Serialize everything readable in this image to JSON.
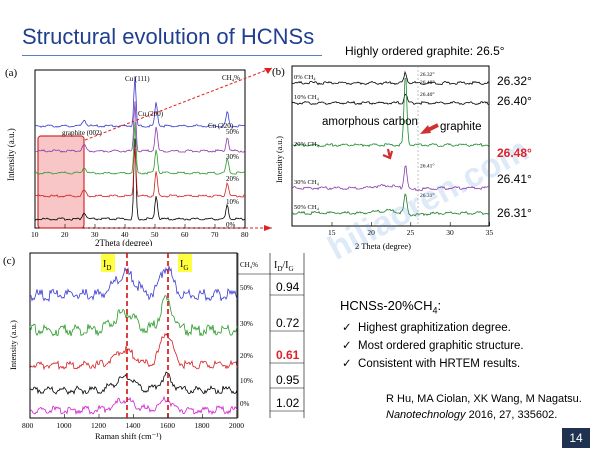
{
  "title": "Structural evolution of HCNSs",
  "top_note": "Highly ordered graphite: 26.5°",
  "angles": [
    {
      "label": "26.32°",
      "highlight": false
    },
    {
      "label": "26.40°",
      "highlight": false
    },
    {
      "label": "26.48°",
      "highlight": true
    },
    {
      "label": "26.41°",
      "highlight": false
    },
    {
      "label": "26.31°",
      "highlight": false
    }
  ],
  "panel_a": {
    "letter": "(a)",
    "ylabel": "Intensity (a.u.)",
    "xlabel": "2Theta (degree)",
    "xticks": [
      "10",
      "20",
      "30",
      "40",
      "50",
      "60",
      "70",
      "80"
    ],
    "peaks": [
      "Cu (111)",
      "Cu (200)",
      "Cu (220)",
      "graphite (002)"
    ],
    "legend_head": "CH₄%",
    "series": [
      "0%",
      "10%",
      "20%",
      "30%",
      "50%"
    ],
    "colors": [
      "#000000",
      "#d42020",
      "#2a9a2a",
      "#8a3aa8",
      "#3a3ad0"
    ]
  },
  "panel_b": {
    "letter": "(b)",
    "ylabel": "Intensity (a.u.)",
    "xlabel": "2 Theta (degree)",
    "xticks": [
      "15",
      "20",
      "25",
      "30",
      "35"
    ],
    "series": [
      "0% CH₄",
      "10% CH₄",
      "20% CH₄",
      "30% CH₄",
      "50% CH₄"
    ],
    "peak_labels": [
      "26.32°",
      "26.40°",
      "26.48°",
      "26.41°",
      "26.31°"
    ],
    "ann_amorphous": "amorphous carbon",
    "ann_graphite": "graphite"
  },
  "panel_c": {
    "letter": "(c)",
    "ylabel": "Intensity (a.u.)",
    "xlabel": "Raman shift (cm⁻¹)",
    "xticks": [
      "800",
      "1000",
      "1200",
      "1400",
      "1600",
      "1800",
      "2000"
    ],
    "band_d": "I_D",
    "band_g": "I_G",
    "table_head_ch4": "CH₄%",
    "table_head_ratio": "I_D/I_G",
    "rows": [
      {
        "ch4": "50%",
        "ratio": "0.94",
        "highlight": false
      },
      {
        "ch4": "30%",
        "ratio": "0.72",
        "highlight": false
      },
      {
        "ch4": "20%",
        "ratio": "0.61",
        "highlight": true
      },
      {
        "ch4": "10%",
        "ratio": "0.95",
        "highlight": false
      },
      {
        "ch4": "0%",
        "ratio": "1.02",
        "highlight": false
      }
    ],
    "colors": [
      "#3a3ad0",
      "#2a9a2a",
      "#d42020",
      "#000000",
      "#d020d0"
    ]
  },
  "conclusion": {
    "heading": "HCNSs-20%CH",
    "heading_sub": "4",
    "heading_end": ":",
    "bullets": [
      "Highest graphitization degree.",
      "Most ordered graphitic structure.",
      "Consistent with HRTEM results."
    ]
  },
  "reference": {
    "authors": "R Hu, MA Ciolan, XK Wang, M Nagatsu.",
    "journal": "Nanotechnology",
    "details": " 2016, 27, 335602."
  },
  "watermark": "hiliaoren.com",
  "page_number": "14"
}
